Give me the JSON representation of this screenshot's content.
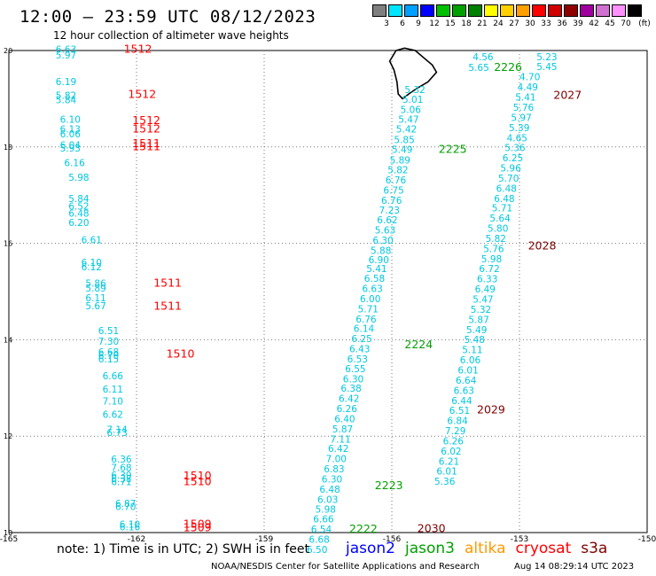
{
  "header": {
    "title": "12:00 – 23:59 UTC 08/12/2023",
    "subtitle": "12 hour collection of altimeter wave heights"
  },
  "legend": {
    "unit": "(ft)",
    "items": [
      {
        "label": "3",
        "color": "#7f7f7f"
      },
      {
        "label": "6",
        "color": "#00e5ff"
      },
      {
        "label": "9",
        "color": "#00a0ff"
      },
      {
        "label": "12",
        "color": "#0000ff"
      },
      {
        "label": "15",
        "color": "#00c000"
      },
      {
        "label": "18",
        "color": "#00a000"
      },
      {
        "label": "21",
        "color": "#008000"
      },
      {
        "label": "24",
        "color": "#ffff00"
      },
      {
        "label": "27",
        "color": "#ffd000"
      },
      {
        "label": "30",
        "color": "#ffa000"
      },
      {
        "label": "33",
        "color": "#ff0000"
      },
      {
        "label": "36",
        "color": "#d00000"
      },
      {
        "label": "39",
        "color": "#900000"
      },
      {
        "label": "42",
        "color": "#a000a0"
      },
      {
        "label": "45",
        "color": "#d070d0"
      },
      {
        "label": "70",
        "color": "#ff90ff"
      },
      {
        "label": "",
        "color": "#000000"
      }
    ]
  },
  "axes": {
    "x_ticks": [
      {
        "lon": -165,
        "label": "-165"
      },
      {
        "lon": -162,
        "label": "-162"
      },
      {
        "lon": -159,
        "label": "-159"
      },
      {
        "lon": -156,
        "label": "-156"
      },
      {
        "lon": -153,
        "label": "-153"
      },
      {
        "lon": -150,
        "label": "-150"
      }
    ],
    "y_ticks": [
      {
        "lat": 10,
        "label": "10"
      },
      {
        "lat": 12,
        "label": "12"
      },
      {
        "lat": 14,
        "label": "14"
      },
      {
        "lat": 16,
        "label": "16"
      },
      {
        "lat": 18,
        "label": "18"
      },
      {
        "lat": 20,
        "label": "20"
      }
    ],
    "lon_range": [
      -165,
      -150
    ],
    "lat_range": [
      10,
      20
    ]
  },
  "colors": {
    "swh": "#00c8e0",
    "jason2": "#0000ff",
    "jason3": "#00a000",
    "altika": "#ff9900",
    "cryosat": "#ff0000",
    "s3a": "#800000"
  },
  "tracks": {
    "left_values": [
      {
        "lon": -163.9,
        "lat": 19.95,
        "v": "6.63"
      },
      {
        "lon": -163.9,
        "lat": 19.83,
        "v": "5.97"
      },
      {
        "lon": -163.9,
        "lat": 19.28,
        "v": "6.19"
      },
      {
        "lon": -163.9,
        "lat": 19.0,
        "v": "5.82"
      },
      {
        "lon": -163.9,
        "lat": 18.91,
        "v": "5.84"
      },
      {
        "lon": -163.8,
        "lat": 18.5,
        "v": "6.10"
      },
      {
        "lon": -163.8,
        "lat": 18.3,
        "v": "6.13"
      },
      {
        "lon": -163.8,
        "lat": 18.2,
        "v": "6.06"
      },
      {
        "lon": -163.8,
        "lat": 17.97,
        "v": "6.04"
      },
      {
        "lon": -163.8,
        "lat": 17.9,
        "v": "5.93"
      },
      {
        "lon": -163.7,
        "lat": 17.6,
        "v": "6.16"
      },
      {
        "lon": -163.6,
        "lat": 17.3,
        "v": "5.98"
      },
      {
        "lon": -163.6,
        "lat": 16.86,
        "v": "5.84"
      },
      {
        "lon": -163.6,
        "lat": 16.7,
        "v": "6.52"
      },
      {
        "lon": -163.6,
        "lat": 16.55,
        "v": "6.48"
      },
      {
        "lon": -163.6,
        "lat": 16.36,
        "v": "6.20"
      },
      {
        "lon": -163.3,
        "lat": 16.0,
        "v": "6.61"
      },
      {
        "lon": -163.3,
        "lat": 15.53,
        "v": "6.10"
      },
      {
        "lon": -163.3,
        "lat": 15.44,
        "v": "6.12"
      },
      {
        "lon": -163.2,
        "lat": 15.1,
        "v": "5.86"
      },
      {
        "lon": -163.2,
        "lat": 15.0,
        "v": "5.89"
      },
      {
        "lon": -163.2,
        "lat": 14.8,
        "v": "6.11"
      },
      {
        "lon": -163.2,
        "lat": 14.63,
        "v": "5.67"
      },
      {
        "lon": -162.9,
        "lat": 14.12,
        "v": "6.51"
      },
      {
        "lon": -162.9,
        "lat": 13.9,
        "v": "7.30"
      },
      {
        "lon": -162.9,
        "lat": 13.68,
        "v": "6.68"
      },
      {
        "lon": -162.9,
        "lat": 13.6,
        "v": "6.70"
      },
      {
        "lon": -162.9,
        "lat": 13.53,
        "v": "6.15"
      },
      {
        "lon": -162.8,
        "lat": 13.18,
        "v": "6.66"
      },
      {
        "lon": -162.8,
        "lat": 12.9,
        "v": "6.11"
      },
      {
        "lon": -162.8,
        "lat": 12.66,
        "v": "7.10"
      },
      {
        "lon": -162.8,
        "lat": 12.38,
        "v": "6.62"
      },
      {
        "lon": -162.7,
        "lat": 12.07,
        "v": "7.14"
      },
      {
        "lon": -162.7,
        "lat": 12.0,
        "v": "6.73"
      },
      {
        "lon": -162.6,
        "lat": 11.45,
        "v": "6.36"
      },
      {
        "lon": -162.6,
        "lat": 11.28,
        "v": "7.68"
      },
      {
        "lon": -162.6,
        "lat": 11.12,
        "v": "6.39"
      },
      {
        "lon": -162.6,
        "lat": 11.05,
        "v": "6.38"
      },
      {
        "lon": -162.6,
        "lat": 10.98,
        "v": "6.71"
      },
      {
        "lon": -162.5,
        "lat": 10.53,
        "v": "6.87"
      },
      {
        "lon": -162.5,
        "lat": 10.47,
        "v": "6.70"
      },
      {
        "lon": -162.4,
        "lat": 10.1,
        "v": "6.10"
      },
      {
        "lon": -162.4,
        "lat": 10.05,
        "v": "6.16"
      }
    ],
    "left_cycles": [
      {
        "lon": -162.3,
        "lat": 19.95,
        "v": "1512",
        "c": "cryosat"
      },
      {
        "lon": -162.2,
        "lat": 19.02,
        "v": "1512",
        "c": "cryosat"
      },
      {
        "lon": -162.1,
        "lat": 18.47,
        "v": "1512",
        "c": "cryosat"
      },
      {
        "lon": -162.1,
        "lat": 18.3,
        "v": "1512",
        "c": "cryosat"
      },
      {
        "lon": -162.1,
        "lat": 18.0,
        "v": "1511",
        "c": "cryosat"
      },
      {
        "lon": -162.1,
        "lat": 17.93,
        "v": "1511",
        "c": "cryosat"
      },
      {
        "lon": -161.6,
        "lat": 15.1,
        "v": "1511",
        "c": "cryosat"
      },
      {
        "lon": -161.6,
        "lat": 14.62,
        "v": "1511",
        "c": "cryosat"
      },
      {
        "lon": -161.3,
        "lat": 13.63,
        "v": "1510",
        "c": "cryosat"
      },
      {
        "lon": -160.9,
        "lat": 11.1,
        "v": "1510",
        "c": "cryosat"
      },
      {
        "lon": -160.9,
        "lat": 10.98,
        "v": "1510",
        "c": "cryosat"
      },
      {
        "lon": -160.9,
        "lat": 10.1,
        "v": "1509",
        "c": "cryosat"
      },
      {
        "lon": -160.9,
        "lat": 10.03,
        "v": "1509",
        "c": "cryosat"
      }
    ],
    "mid_values": [
      {
        "lon": -155.7,
        "lat": 19.12,
        "v": "5.32"
      },
      {
        "lon": -155.75,
        "lat": 18.92,
        "v": "5.01"
      },
      {
        "lon": -155.8,
        "lat": 18.7,
        "v": "5.06"
      },
      {
        "lon": -155.85,
        "lat": 18.5,
        "v": "5.47"
      },
      {
        "lon": -155.9,
        "lat": 18.3,
        "v": "5.42"
      },
      {
        "lon": -155.95,
        "lat": 18.08,
        "v": "5.85"
      },
      {
        "lon": -156.0,
        "lat": 17.88,
        "v": "5.49"
      },
      {
        "lon": -156.05,
        "lat": 17.66,
        "v": "5.89"
      },
      {
        "lon": -156.1,
        "lat": 17.45,
        "v": "5.82"
      },
      {
        "lon": -156.15,
        "lat": 17.24,
        "v": "6.76"
      },
      {
        "lon": -156.2,
        "lat": 17.03,
        "v": "6.75"
      },
      {
        "lon": -156.25,
        "lat": 16.82,
        "v": "6.76"
      },
      {
        "lon": -156.3,
        "lat": 16.62,
        "v": "7.23"
      },
      {
        "lon": -156.35,
        "lat": 16.42,
        "v": "6.62"
      },
      {
        "lon": -156.4,
        "lat": 16.2,
        "v": "5.63"
      },
      {
        "lon": -156.45,
        "lat": 15.99,
        "v": "6.30"
      },
      {
        "lon": -156.5,
        "lat": 15.78,
        "v": "5.88"
      },
      {
        "lon": -156.55,
        "lat": 15.59,
        "v": "6.90"
      },
      {
        "lon": -156.6,
        "lat": 15.4,
        "v": "5.41"
      },
      {
        "lon": -156.65,
        "lat": 15.2,
        "v": "6.58"
      },
      {
        "lon": -156.7,
        "lat": 14.99,
        "v": "6.63"
      },
      {
        "lon": -156.75,
        "lat": 14.78,
        "v": "6.00"
      },
      {
        "lon": -156.8,
        "lat": 14.57,
        "v": "5.71"
      },
      {
        "lon": -156.85,
        "lat": 14.36,
        "v": "6.76"
      },
      {
        "lon": -156.9,
        "lat": 14.16,
        "v": "6.14"
      },
      {
        "lon": -156.95,
        "lat": 13.95,
        "v": "6.25"
      },
      {
        "lon": -157.0,
        "lat": 13.74,
        "v": "6.43"
      },
      {
        "lon": -157.05,
        "lat": 13.53,
        "v": "6.53"
      },
      {
        "lon": -157.1,
        "lat": 13.33,
        "v": "6.55"
      },
      {
        "lon": -157.15,
        "lat": 13.12,
        "v": "6.30"
      },
      {
        "lon": -157.2,
        "lat": 12.92,
        "v": "6.38"
      },
      {
        "lon": -157.25,
        "lat": 12.71,
        "v": "6.42"
      },
      {
        "lon": -157.3,
        "lat": 12.5,
        "v": "6.26"
      },
      {
        "lon": -157.35,
        "lat": 12.29,
        "v": "6.40"
      },
      {
        "lon": -157.4,
        "lat": 12.08,
        "v": "5.87"
      },
      {
        "lon": -157.45,
        "lat": 11.87,
        "v": "7.11"
      },
      {
        "lon": -157.5,
        "lat": 11.67,
        "v": "6.42"
      },
      {
        "lon": -157.55,
        "lat": 11.46,
        "v": "7.00"
      },
      {
        "lon": -157.6,
        "lat": 11.25,
        "v": "6.83"
      },
      {
        "lon": -157.65,
        "lat": 11.04,
        "v": "6.30"
      },
      {
        "lon": -157.7,
        "lat": 10.83,
        "v": "6.48"
      },
      {
        "lon": -157.75,
        "lat": 10.62,
        "v": "6.03"
      },
      {
        "lon": -157.8,
        "lat": 10.41,
        "v": "5.98"
      },
      {
        "lon": -157.85,
        "lat": 10.21,
        "v": "6.66"
      },
      {
        "lon": -157.9,
        "lat": 10.0,
        "v": "6.54"
      },
      {
        "lon": -157.95,
        "lat": 9.79,
        "v": "6.68"
      },
      {
        "lon": -158.0,
        "lat": 9.58,
        "v": "6.50"
      }
    ],
    "right_values": [
      {
        "lon": -154.1,
        "lat": 19.8,
        "v": "4.56"
      },
      {
        "lon": -152.6,
        "lat": 19.8,
        "v": "5.23"
      },
      {
        "lon": -154.2,
        "lat": 19.58,
        "v": "5.65"
      },
      {
        "lon": -152.6,
        "lat": 19.6,
        "v": "5.45"
      },
      {
        "lon": -153.0,
        "lat": 19.38,
        "v": "4.70"
      },
      {
        "lon": -153.05,
        "lat": 19.17,
        "v": "4.49"
      },
      {
        "lon": -153.1,
        "lat": 18.96,
        "v": "5.41"
      },
      {
        "lon": -153.15,
        "lat": 18.75,
        "v": "5.76"
      },
      {
        "lon": -153.2,
        "lat": 18.54,
        "v": "5.97"
      },
      {
        "lon": -153.25,
        "lat": 18.33,
        "v": "5.39"
      },
      {
        "lon": -153.3,
        "lat": 18.12,
        "v": "4.65"
      },
      {
        "lon": -153.35,
        "lat": 17.91,
        "v": "5.36"
      },
      {
        "lon": -153.4,
        "lat": 17.7,
        "v": "6.25"
      },
      {
        "lon": -153.45,
        "lat": 17.49,
        "v": "5.96"
      },
      {
        "lon": -153.5,
        "lat": 17.28,
        "v": "5.70"
      },
      {
        "lon": -153.55,
        "lat": 17.07,
        "v": "6.48"
      },
      {
        "lon": -153.6,
        "lat": 16.86,
        "v": "6.48"
      },
      {
        "lon": -153.65,
        "lat": 16.66,
        "v": "5.71"
      },
      {
        "lon": -153.7,
        "lat": 16.45,
        "v": "5.64"
      },
      {
        "lon": -153.75,
        "lat": 16.24,
        "v": "5.80"
      },
      {
        "lon": -153.8,
        "lat": 16.03,
        "v": "5.82"
      },
      {
        "lon": -153.85,
        "lat": 15.82,
        "v": "5.76"
      },
      {
        "lon": -153.9,
        "lat": 15.61,
        "v": "5.98"
      },
      {
        "lon": -153.95,
        "lat": 15.4,
        "v": "6.72"
      },
      {
        "lon": -154.0,
        "lat": 15.19,
        "v": "6.33"
      },
      {
        "lon": -154.05,
        "lat": 14.98,
        "v": "6.49"
      },
      {
        "lon": -154.1,
        "lat": 14.77,
        "v": "5.47"
      },
      {
        "lon": -154.15,
        "lat": 14.56,
        "v": "5.32"
      },
      {
        "lon": -154.2,
        "lat": 14.35,
        "v": "5.87"
      },
      {
        "lon": -154.25,
        "lat": 14.14,
        "v": "5.49"
      },
      {
        "lon": -154.3,
        "lat": 13.93,
        "v": "5.48"
      },
      {
        "lon": -154.35,
        "lat": 13.72,
        "v": "5.11"
      },
      {
        "lon": -154.4,
        "lat": 13.51,
        "v": "6.06"
      },
      {
        "lon": -154.45,
        "lat": 13.3,
        "v": "6.01"
      },
      {
        "lon": -154.5,
        "lat": 13.09,
        "v": "6.64"
      },
      {
        "lon": -154.55,
        "lat": 12.88,
        "v": "6.63"
      },
      {
        "lon": -154.6,
        "lat": 12.67,
        "v": "6.44"
      },
      {
        "lon": -154.65,
        "lat": 12.46,
        "v": "6.51"
      },
      {
        "lon": -154.7,
        "lat": 12.25,
        "v": "6.84"
      },
      {
        "lon": -154.75,
        "lat": 12.04,
        "v": "7.29"
      },
      {
        "lon": -154.8,
        "lat": 11.83,
        "v": "6.26"
      },
      {
        "lon": -154.85,
        "lat": 11.62,
        "v": "6.02"
      },
      {
        "lon": -154.9,
        "lat": 11.41,
        "v": "6.21"
      },
      {
        "lon": -154.95,
        "lat": 11.2,
        "v": "6.01"
      },
      {
        "lon": -155.0,
        "lat": 10.99,
        "v": "5.36"
      }
    ],
    "cycles": [
      {
        "lon": -153.6,
        "lat": 19.58,
        "v": "2226",
        "c": "jason3"
      },
      {
        "lon": -152.2,
        "lat": 19.0,
        "v": "2027",
        "c": "s3a"
      },
      {
        "lon": -154.9,
        "lat": 17.88,
        "v": "2225",
        "c": "jason3"
      },
      {
        "lon": -152.8,
        "lat": 15.87,
        "v": "2028",
        "c": "s3a"
      },
      {
        "lon": -155.7,
        "lat": 13.82,
        "v": "2224",
        "c": "jason3"
      },
      {
        "lon": -154.0,
        "lat": 12.47,
        "v": "2029",
        "c": "s3a"
      },
      {
        "lon": -156.4,
        "lat": 10.9,
        "v": "2223",
        "c": "jason3"
      },
      {
        "lon": -157.0,
        "lat": 10.0,
        "v": "2222",
        "c": "jason3"
      },
      {
        "lon": -155.4,
        "lat": 10.01,
        "v": "2030",
        "c": "s3a"
      }
    ]
  },
  "footer": {
    "note": "note: 1) Time is in UTC; 2) SWH is in feet",
    "satellites": [
      {
        "name": "jason2",
        "c": "jason2"
      },
      {
        "name": "jason3",
        "c": "jason3"
      },
      {
        "name": "altika",
        "c": "altika"
      },
      {
        "name": "cryosat",
        "c": "cryosat"
      },
      {
        "name": "s3a",
        "c": "s3a"
      }
    ],
    "credit": "NOAA/NESDIS Center for Satellite Applications and Research",
    "timestamp": "Aug 14 08:29:14 UTC 2023"
  }
}
